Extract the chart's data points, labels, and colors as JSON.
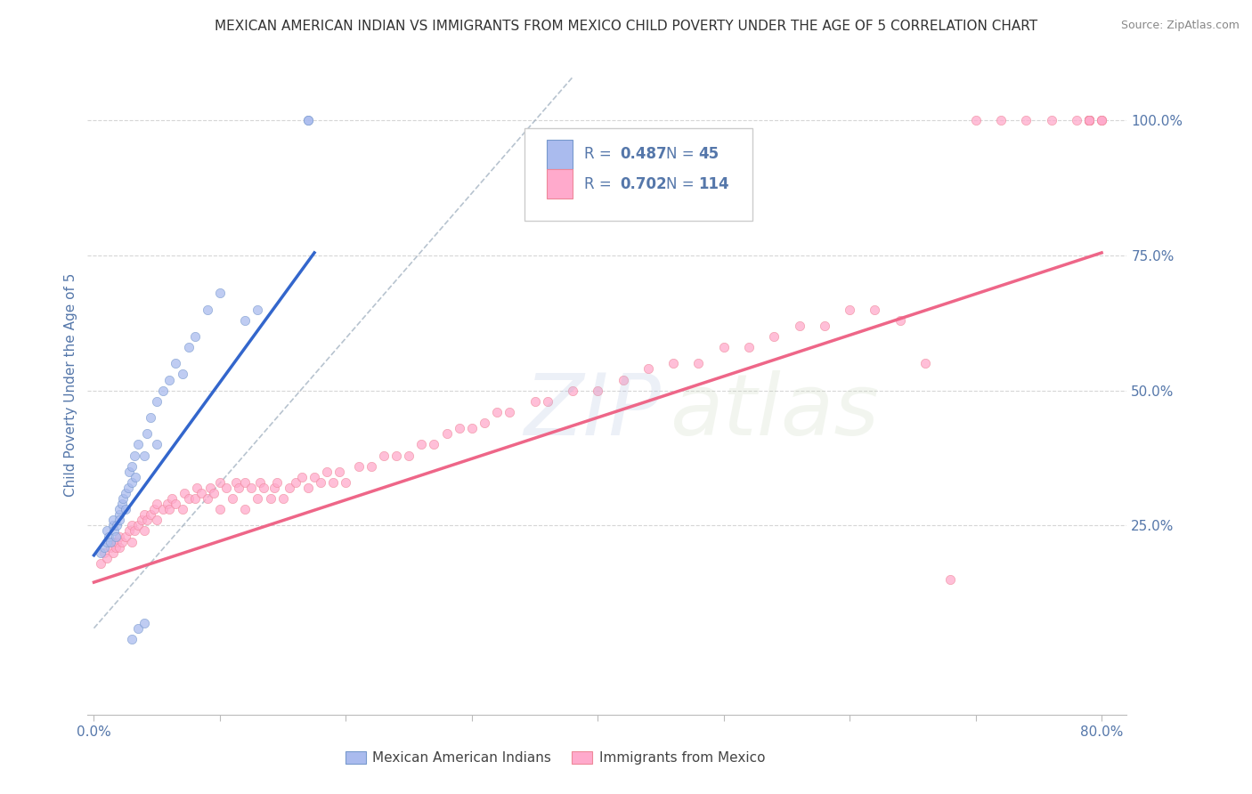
{
  "title": "MEXICAN AMERICAN INDIAN VS IMMIGRANTS FROM MEXICO CHILD POVERTY UNDER THE AGE OF 5 CORRELATION CHART",
  "source": "Source: ZipAtlas.com",
  "ylabel": "Child Poverty Under the Age of 5",
  "xlim": [
    -0.005,
    0.82
  ],
  "ylim": [
    -0.1,
    1.12
  ],
  "xticks": [
    0.0,
    0.1,
    0.2,
    0.3,
    0.4,
    0.5,
    0.6,
    0.7,
    0.8
  ],
  "xticklabels": [
    "0.0%",
    "",
    "",
    "",
    "",
    "",
    "",
    "",
    "80.0%"
  ],
  "ytick_positions": [
    0.25,
    0.5,
    0.75,
    1.0
  ],
  "ytick_labels": [
    "25.0%",
    "50.0%",
    "75.0%",
    "100.0%"
  ],
  "legend_r1": "0.487",
  "legend_n1": "45",
  "legend_r2": "0.702",
  "legend_n2": "114",
  "color_blue_fill": "#AABBEE",
  "color_blue_edge": "#7799CC",
  "color_pink_fill": "#FFAACC",
  "color_pink_edge": "#EE8899",
  "color_blue_line": "#3366CC",
  "color_pink_line": "#EE6688",
  "color_blue_dash": "#99AABB",
  "color_axis_text": "#5577AA",
  "color_title": "#333333",
  "color_source": "#888888",
  "watermark": "ZIPatlas",
  "background": "#FFFFFF",
  "blue_x": [
    0.005,
    0.008,
    0.01,
    0.01,
    0.012,
    0.013,
    0.015,
    0.015,
    0.016,
    0.017,
    0.018,
    0.02,
    0.02,
    0.02,
    0.022,
    0.023,
    0.025,
    0.025,
    0.027,
    0.028,
    0.03,
    0.03,
    0.032,
    0.033,
    0.035,
    0.04,
    0.042,
    0.045,
    0.05,
    0.05,
    0.055,
    0.06,
    0.065,
    0.07,
    0.075,
    0.08,
    0.09,
    0.1,
    0.12,
    0.13,
    0.03,
    0.035,
    0.04,
    0.17,
    0.17
  ],
  "blue_y": [
    0.2,
    0.21,
    0.22,
    0.24,
    0.23,
    0.22,
    0.25,
    0.26,
    0.24,
    0.23,
    0.25,
    0.27,
    0.26,
    0.28,
    0.29,
    0.3,
    0.31,
    0.28,
    0.32,
    0.35,
    0.33,
    0.36,
    0.38,
    0.34,
    0.4,
    0.38,
    0.42,
    0.45,
    0.4,
    0.48,
    0.5,
    0.52,
    0.55,
    0.53,
    0.58,
    0.6,
    0.65,
    0.68,
    0.63,
    0.65,
    0.04,
    0.06,
    0.07,
    1.0,
    1.0
  ],
  "pink_x": [
    0.005,
    0.008,
    0.01,
    0.013,
    0.015,
    0.015,
    0.017,
    0.018,
    0.02,
    0.02,
    0.022,
    0.025,
    0.028,
    0.03,
    0.03,
    0.032,
    0.035,
    0.038,
    0.04,
    0.04,
    0.042,
    0.045,
    0.048,
    0.05,
    0.05,
    0.055,
    0.058,
    0.06,
    0.062,
    0.065,
    0.07,
    0.072,
    0.075,
    0.08,
    0.082,
    0.085,
    0.09,
    0.092,
    0.095,
    0.1,
    0.1,
    0.105,
    0.11,
    0.113,
    0.115,
    0.12,
    0.12,
    0.125,
    0.13,
    0.132,
    0.135,
    0.14,
    0.143,
    0.145,
    0.15,
    0.155,
    0.16,
    0.165,
    0.17,
    0.175,
    0.18,
    0.185,
    0.19,
    0.195,
    0.2,
    0.21,
    0.22,
    0.23,
    0.24,
    0.25,
    0.26,
    0.27,
    0.28,
    0.29,
    0.3,
    0.31,
    0.32,
    0.33,
    0.35,
    0.36,
    0.38,
    0.4,
    0.42,
    0.44,
    0.46,
    0.48,
    0.5,
    0.52,
    0.54,
    0.56,
    0.58,
    0.6,
    0.62,
    0.64,
    0.66,
    0.68,
    0.7,
    0.72,
    0.74,
    0.76,
    0.78,
    0.79,
    0.79,
    0.79,
    0.79,
    0.79,
    0.79,
    0.79,
    0.79,
    0.79,
    0.79,
    0.8,
    0.8,
    0.8
  ],
  "pink_y": [
    0.18,
    0.2,
    0.19,
    0.21,
    0.2,
    0.22,
    0.21,
    0.22,
    0.21,
    0.23,
    0.22,
    0.23,
    0.24,
    0.22,
    0.25,
    0.24,
    0.25,
    0.26,
    0.24,
    0.27,
    0.26,
    0.27,
    0.28,
    0.26,
    0.29,
    0.28,
    0.29,
    0.28,
    0.3,
    0.29,
    0.28,
    0.31,
    0.3,
    0.3,
    0.32,
    0.31,
    0.3,
    0.32,
    0.31,
    0.28,
    0.33,
    0.32,
    0.3,
    0.33,
    0.32,
    0.28,
    0.33,
    0.32,
    0.3,
    0.33,
    0.32,
    0.3,
    0.32,
    0.33,
    0.3,
    0.32,
    0.33,
    0.34,
    0.32,
    0.34,
    0.33,
    0.35,
    0.33,
    0.35,
    0.33,
    0.36,
    0.36,
    0.38,
    0.38,
    0.38,
    0.4,
    0.4,
    0.42,
    0.43,
    0.43,
    0.44,
    0.46,
    0.46,
    0.48,
    0.48,
    0.5,
    0.5,
    0.52,
    0.54,
    0.55,
    0.55,
    0.58,
    0.58,
    0.6,
    0.62,
    0.62,
    0.65,
    0.65,
    0.63,
    0.55,
    0.15,
    1.0,
    1.0,
    1.0,
    1.0,
    1.0,
    1.0,
    1.0,
    1.0,
    1.0,
    1.0,
    1.0,
    1.0,
    1.0,
    1.0,
    1.0,
    1.0,
    1.0,
    1.0
  ],
  "blue_line_x": [
    0.0,
    0.175
  ],
  "blue_line_y": [
    0.195,
    0.755
  ],
  "pink_line_x": [
    0.0,
    0.8
  ],
  "pink_line_y": [
    0.145,
    0.755
  ],
  "dash_line_x": [
    0.0,
    0.38
  ],
  "dash_line_y": [
    0.06,
    1.08
  ]
}
